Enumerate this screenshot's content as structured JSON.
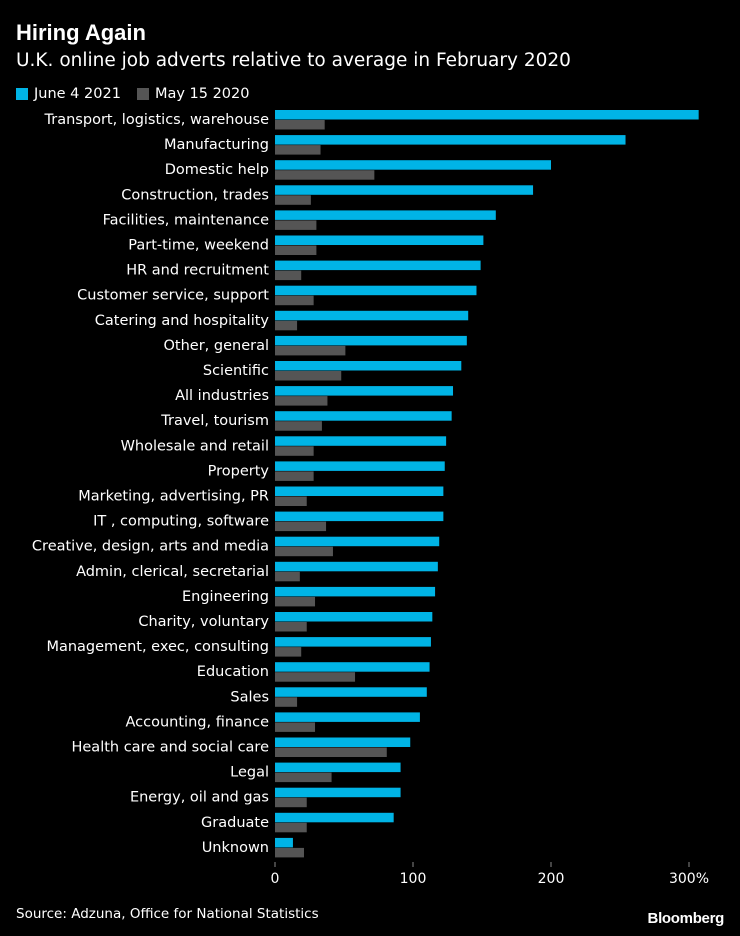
{
  "header": {
    "title": "Hiring Again",
    "subtitle": "U.K. online job adverts relative to average in February 2020"
  },
  "legend": [
    {
      "label": "June 4 2021",
      "color": "#00b4e6"
    },
    {
      "label": "May 15 2020",
      "color": "#555555"
    }
  ],
  "footer": {
    "source": "Source: Adzuna, Office for National Statistics",
    "brand": "Bloomberg"
  },
  "chart_data": {
    "type": "bar",
    "orientation": "horizontal",
    "title": "Hiring Again",
    "subtitle": "U.K. online job adverts relative to average in February 2020",
    "xlabel": "",
    "ylabel": "",
    "xlim": [
      0,
      300
    ],
    "x_ticks": [
      0,
      100,
      200,
      300
    ],
    "x_tick_labels": [
      "0",
      "100",
      "200",
      "300%"
    ],
    "categories": [
      "Transport, logistics, warehouse",
      "Manufacturing",
      "Domestic help",
      "Construction, trades",
      "Facilities, maintenance",
      "Part-time, weekend",
      "HR and recruitment",
      "Customer service, support",
      "Catering and hospitality",
      "Other, general",
      "Scientific",
      "All industries",
      "Travel, tourism",
      "Wholesale and retail",
      "Property",
      "Marketing, advertising, PR",
      "IT , computing, software",
      "Creative, design, arts and media",
      "Admin, clerical, secretarial",
      "Engineering",
      "Charity, voluntary",
      "Management, exec, consulting",
      "Education",
      "Sales",
      "Accounting, finance",
      "Health care and social care",
      "Legal",
      "Energy, oil and gas",
      "Graduate",
      "Unknown"
    ],
    "series": [
      {
        "name": "June 4 2021",
        "color": "#00b4e6",
        "values": [
          307,
          254,
          200,
          187,
          160,
          151,
          149,
          146,
          140,
          139,
          135,
          129,
          128,
          124,
          123,
          122,
          122,
          119,
          118,
          116,
          114,
          113,
          112,
          110,
          105,
          98,
          91,
          91,
          86,
          13
        ]
      },
      {
        "name": "May 15 2020",
        "color": "#555555",
        "values": [
          36,
          33,
          72,
          26,
          30,
          30,
          19,
          28,
          16,
          51,
          48,
          38,
          34,
          28,
          28,
          23,
          37,
          42,
          18,
          29,
          23,
          19,
          58,
          16,
          29,
          81,
          41,
          23,
          23,
          21
        ]
      }
    ]
  }
}
